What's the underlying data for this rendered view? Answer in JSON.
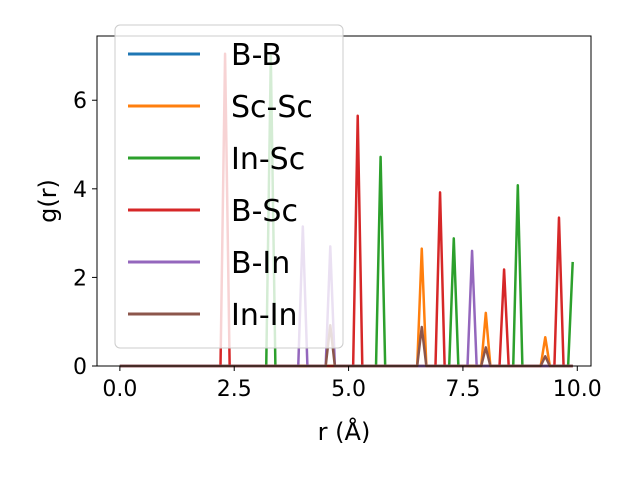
{
  "chart_data": {
    "type": "line",
    "xlabel": "r (Å)",
    "ylabel": "g(r)",
    "xlim": [
      -0.5,
      10.3
    ],
    "ylim": [
      0,
      7.45
    ],
    "xticks": [
      0.0,
      2.5,
      5.0,
      7.5,
      10.0
    ],
    "xtick_labels": [
      "0.0",
      "2.5",
      "5.0",
      "7.5",
      "10.0"
    ],
    "yticks": [
      0,
      2,
      4,
      6
    ],
    "ytick_labels": [
      "0",
      "2",
      "4",
      "6"
    ],
    "grid": false,
    "legend_position": "upper-left",
    "peak_half_width": 0.1,
    "x_range": [
      0.0,
      9.9
    ],
    "series": [
      {
        "name": "B-B",
        "color": "#1f77b4",
        "peaks": []
      },
      {
        "name": "Sc-Sc",
        "color": "#ff7f0e",
        "peaks": [
          [
            6.6,
            2.65
          ],
          [
            8.0,
            1.2
          ],
          [
            9.3,
            0.65
          ]
        ]
      },
      {
        "name": "In-Sc",
        "color": "#2ca02c",
        "peaks": [
          [
            3.3,
            7.0
          ],
          [
            5.7,
            4.72
          ],
          [
            7.3,
            2.88
          ],
          [
            8.7,
            4.08
          ],
          [
            9.9,
            2.35
          ]
        ]
      },
      {
        "name": "B-Sc",
        "color": "#d62728",
        "peaks": [
          [
            2.3,
            7.05
          ],
          [
            5.2,
            5.65
          ],
          [
            7.0,
            3.92
          ],
          [
            8.4,
            2.18
          ],
          [
            9.6,
            3.35
          ]
        ]
      },
      {
        "name": "B-In",
        "color": "#9467bd",
        "peaks": [
          [
            4.0,
            3.15
          ],
          [
            4.6,
            2.7
          ],
          [
            7.7,
            2.6
          ]
        ]
      },
      {
        "name": "In-In",
        "color": "#8c564b",
        "peaks": [
          [
            4.6,
            0.92
          ],
          [
            6.6,
            0.88
          ],
          [
            8.0,
            0.42
          ],
          [
            9.3,
            0.22
          ]
        ]
      }
    ]
  }
}
